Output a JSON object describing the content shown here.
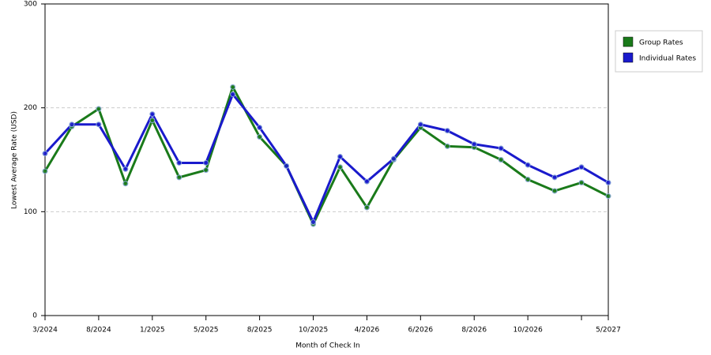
{
  "chart_data": {
    "type": "line",
    "x_label": "Month of Check In",
    "y_label": "Lowest Average Rate (USD)",
    "categories": [
      "3/2024",
      null,
      "8/2024",
      null,
      "1/2025",
      null,
      "5/2025",
      null,
      "8/2025",
      null,
      "10/2025",
      null,
      "4/2026",
      null,
      "6/2026",
      null,
      "8/2026",
      null,
      "10/2026",
      null,
      null,
      "5/2027"
    ],
    "series": [
      {
        "name": "Group Rates",
        "color": "#1a7a1a",
        "values": [
          139,
          182,
          199,
          127,
          188,
          133,
          140,
          220,
          172,
          144,
          88,
          143,
          104,
          150,
          181,
          163,
          162,
          150,
          131,
          120,
          128,
          115
        ]
      },
      {
        "name": "Individual Rates",
        "color": "#1a1acc",
        "values": [
          156,
          184,
          184,
          141,
          194,
          147,
          147,
          213,
          181,
          144,
          90,
          153,
          129,
          151,
          184,
          178,
          165,
          161,
          145,
          133,
          143,
          128
        ]
      }
    ],
    "ylim": [
      0,
      300
    ],
    "yticks": [
      0,
      100,
      200,
      300
    ],
    "grid": true,
    "legend": "right"
  }
}
